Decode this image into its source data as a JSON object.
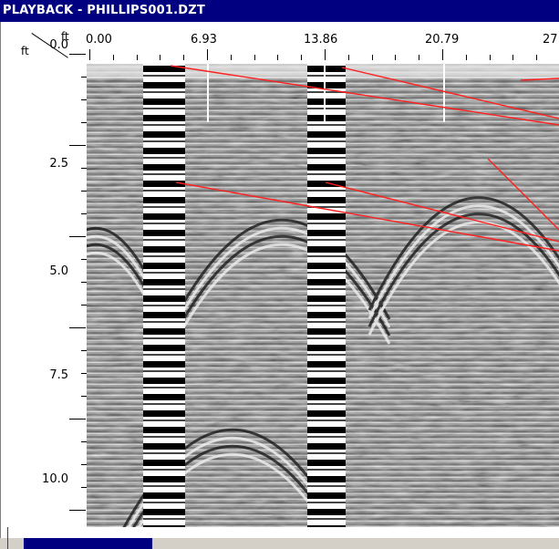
{
  "window": {
    "title": "PLAYBACK - PHILLIPS001.DZT"
  },
  "axes": {
    "x_unit": "ft",
    "y_unit": "ft",
    "x_ticks": [
      "0.00",
      "6.93",
      "13.86",
      "20.79",
      "27"
    ],
    "y_ticks": [
      "0.0",
      "2.5",
      "5.0",
      "7.5",
      "10.0"
    ]
  },
  "colors": {
    "title_bg": "#000080",
    "title_fg": "#ffffff",
    "frame_bg": "#ffffff",
    "chrome_bg": "#d4d0c8",
    "marker_line": "#ffffff",
    "annotation_line": "#ff2020"
  },
  "icons": {
    "corner": "diagonal-axis-corner-icon"
  }
}
